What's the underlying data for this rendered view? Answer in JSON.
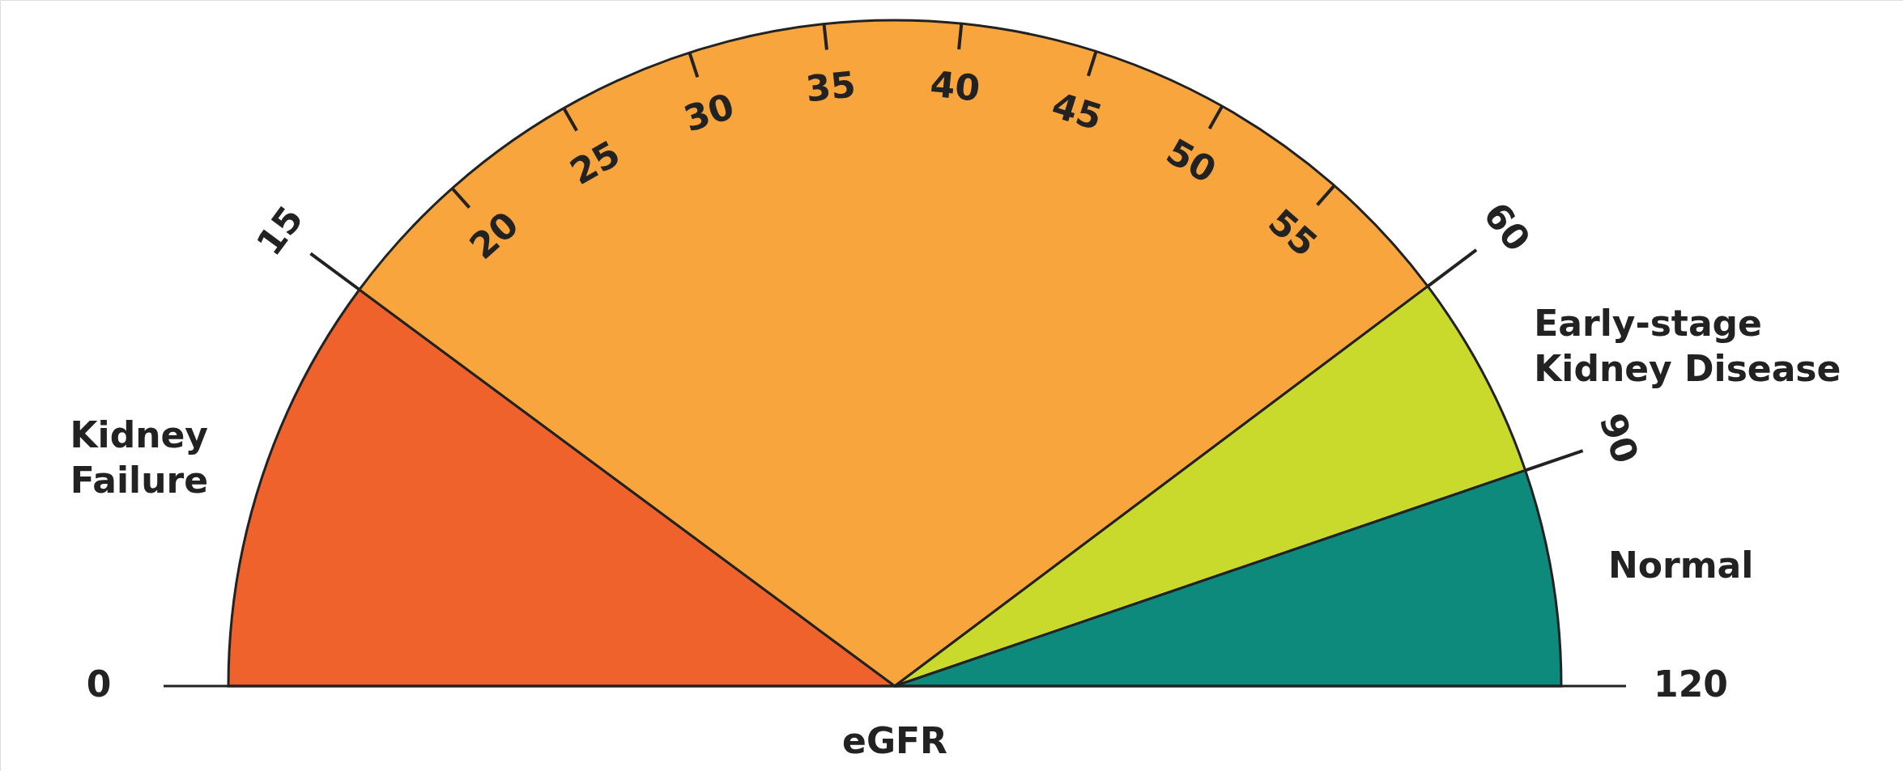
{
  "chart_data": {
    "type": "pie",
    "categories": [
      "Kidney Failure",
      null,
      "Early-stage Kidney Disease",
      "Normal"
    ],
    "values": [
      20.3,
      59.2,
      10.0,
      10.5
    ],
    "colors": [
      "#ef622b",
      "#f7a53c",
      "#c9da2c",
      "#0e8a7c"
    ],
    "annotations": [
      "eGFR",
      "0",
      "15",
      "20",
      "25",
      "30",
      "35",
      "40",
      "45",
      "50",
      "55",
      "60",
      "90",
      "120"
    ]
  }
}
